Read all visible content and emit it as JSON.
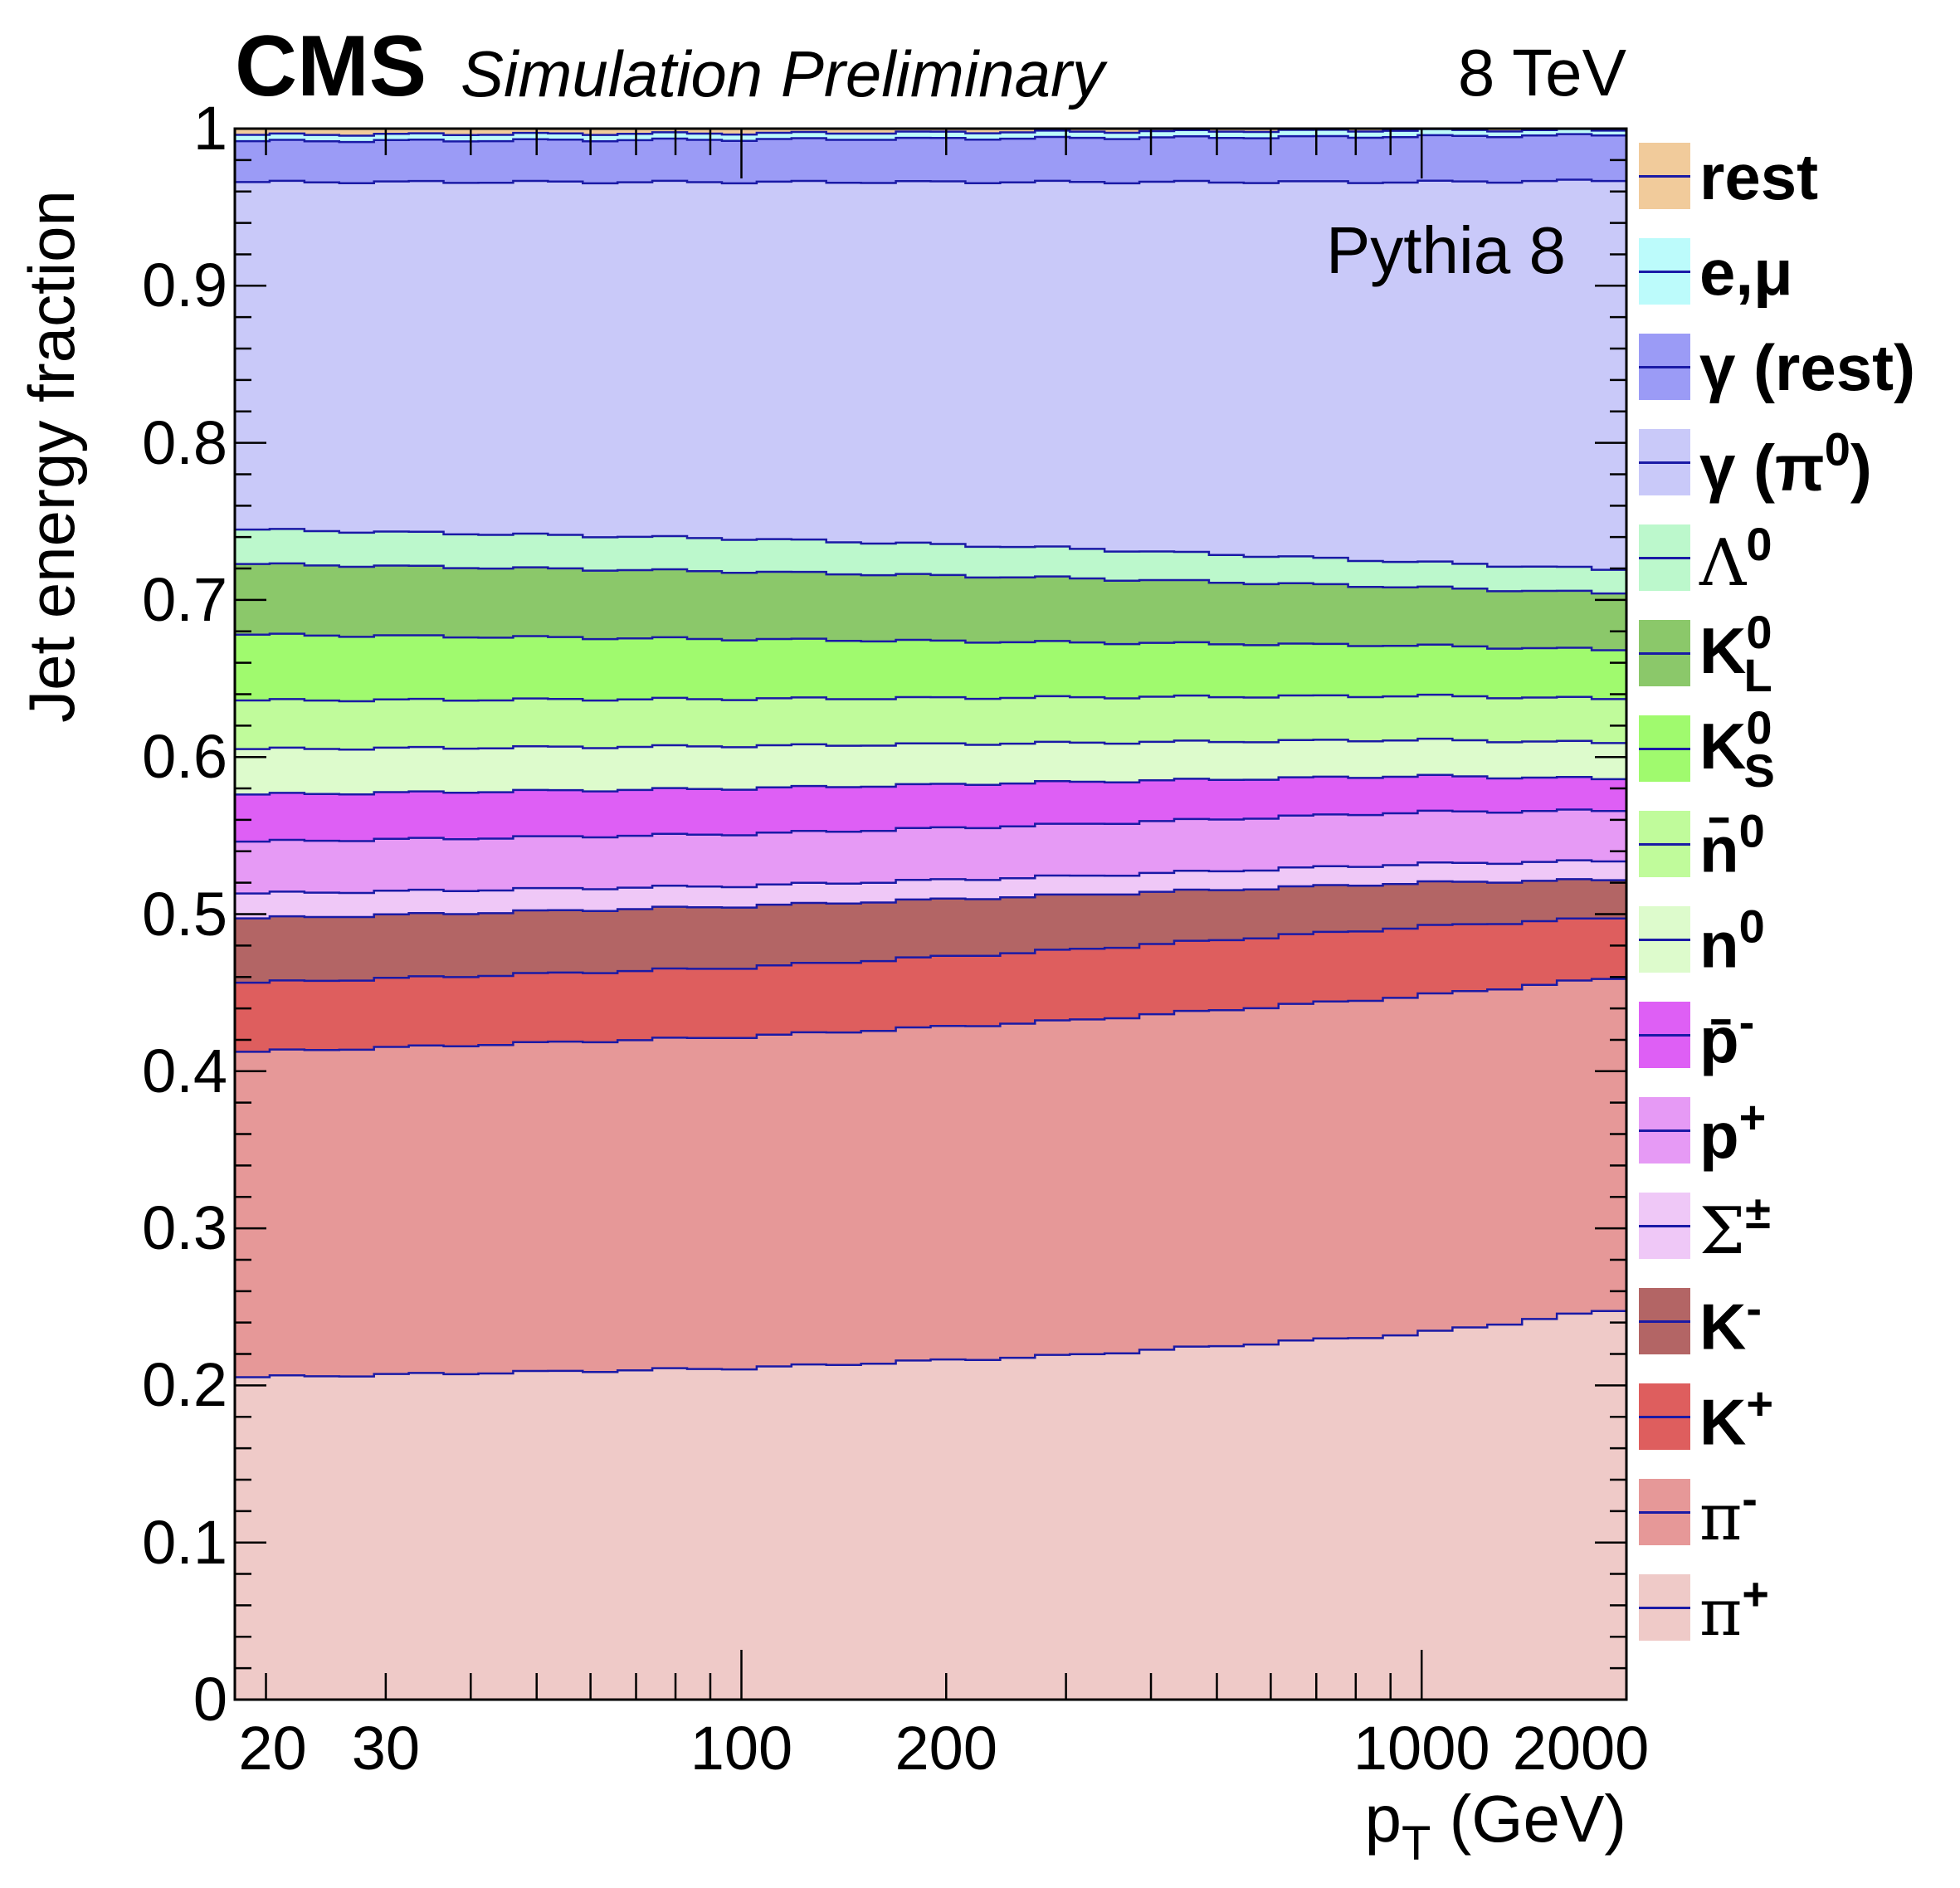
{
  "header": {
    "experiment": "CMS",
    "status": "Simulation Preliminary",
    "energy": "8 TeV",
    "generator": "Pythia 8"
  },
  "chart_data": {
    "type": "area",
    "stacked": true,
    "title": "CMS Simulation Preliminary 8 TeV",
    "xlabel": "p_T (GeV)",
    "ylabel": "Jet energy fraction",
    "xscale": "log",
    "xlim": [
      18,
      2000
    ],
    "ylim": [
      0,
      1.0
    ],
    "x_tick_labels": [
      "20",
      "30",
      "100",
      "200",
      "1000",
      "2000"
    ],
    "x_ticks": [
      20,
      30,
      100,
      200,
      1000,
      2000
    ],
    "y_tick_labels": [
      "0",
      "0.1",
      "0.2",
      "0.3",
      "0.4",
      "0.5",
      "0.6",
      "0.7",
      "0.8",
      "0.9",
      "1"
    ],
    "y_ticks": [
      0,
      0.1,
      0.2,
      0.3,
      0.4,
      0.5,
      0.6,
      0.7,
      0.8,
      0.9,
      1.0
    ],
    "x": [
      18,
      100,
      300,
      1000,
      2000
    ],
    "series_stack_order": "bottom-to-top",
    "cumulative_upper_edges": [
      {
        "name": "π+",
        "color": "#efcac8",
        "values": [
          0.205,
          0.211,
          0.219,
          0.233,
          0.249
        ]
      },
      {
        "name": "π-",
        "color": "#e69898",
        "values": [
          0.412,
          0.422,
          0.432,
          0.448,
          0.46
        ]
      },
      {
        "name": "K+",
        "color": "#de5e5e",
        "values": [
          0.456,
          0.466,
          0.477,
          0.492,
          0.498
        ]
      },
      {
        "name": "K-",
        "color": "#b36565",
        "values": [
          0.497,
          0.505,
          0.512,
          0.52,
          0.522
        ]
      },
      {
        "name": "Σ±",
        "color": "#efc8f7",
        "values": [
          0.513,
          0.518,
          0.524,
          0.532,
          0.534
        ]
      },
      {
        "name": "p+",
        "color": "#e69af5",
        "values": [
          0.546,
          0.551,
          0.557,
          0.565,
          0.566
        ]
      },
      {
        "name": "p̄-",
        "color": "#de5ff5",
        "values": [
          0.576,
          0.58,
          0.584,
          0.588,
          0.586
        ]
      },
      {
        "name": "n0",
        "color": "#ddfbcc",
        "values": [
          0.605,
          0.607,
          0.609,
          0.611,
          0.609
        ]
      },
      {
        "name": "n̄0",
        "color": "#c0fb9b",
        "values": [
          0.636,
          0.637,
          0.638,
          0.639,
          0.637
        ]
      },
      {
        "name": "KS0",
        "color": "#a0fa6e",
        "values": [
          0.678,
          0.675,
          0.673,
          0.671,
          0.668
        ]
      },
      {
        "name": "KL0",
        "color": "#8bc86a",
        "values": [
          0.723,
          0.718,
          0.714,
          0.708,
          0.704
        ]
      },
      {
        "name": "Λ0",
        "color": "#bcf8cc",
        "values": [
          0.745,
          0.739,
          0.733,
          0.724,
          0.719
        ]
      },
      {
        "name": "γ (π0)",
        "color": "#c9c9f9",
        "values": [
          0.966,
          0.966,
          0.966,
          0.966,
          0.967
        ]
      },
      {
        "name": "γ (rest)",
        "color": "#9b9bf6",
        "values": [
          0.992,
          0.993,
          0.994,
          0.995,
          0.996
        ]
      },
      {
        "name": "e,μ",
        "color": "#bcfbfb",
        "values": [
          0.996,
          0.997,
          0.998,
          0.999,
          0.999
        ]
      },
      {
        "name": "rest",
        "color": "#f1cb9b",
        "values": [
          1.0,
          1.0,
          1.0,
          1.0,
          1.0
        ]
      }
    ],
    "legend": {
      "placement": "right",
      "entries": [
        "rest",
        "e,μ",
        "γ (rest)",
        "γ (π0)",
        "Λ0",
        "K0L",
        "K0S",
        "n̄0",
        "n0",
        "p̄-",
        "p+",
        "Σ±",
        "K-",
        "K+",
        "π-",
        "π+"
      ]
    },
    "line_color": "#1a1aa6",
    "annotation": "Pythia 8"
  },
  "legend_labels": [
    {
      "id": "rest",
      "base": "rest",
      "sup": "",
      "sub": "",
      "greek": false
    },
    {
      "id": "emu",
      "base": "e,μ",
      "sup": "",
      "sub": "",
      "greek": false
    },
    {
      "id": "gamrest",
      "base": "γ  (rest)",
      "sup": "",
      "sub": "",
      "greek": false
    },
    {
      "id": "gampi0",
      "base": "γ  (π",
      "sup": "0",
      "sub": "",
      "tail": ")",
      "greek": false
    },
    {
      "id": "lambda0",
      "base": "Λ",
      "sup": "0",
      "sub": "",
      "greek": true
    },
    {
      "id": "kl0",
      "base": "K",
      "sup": "0",
      "sub": "L",
      "greek": false
    },
    {
      "id": "ks0",
      "base": "K",
      "sup": "0",
      "sub": "S",
      "greek": false
    },
    {
      "id": "nbar0",
      "base": "n̄",
      "sup": "0",
      "sub": "",
      "greek": false
    },
    {
      "id": "n0",
      "base": "n",
      "sup": "0",
      "sub": "",
      "greek": false
    },
    {
      "id": "pbarm",
      "base": "p̄",
      "sup": "-",
      "sub": "",
      "greek": false
    },
    {
      "id": "pp",
      "base": "p",
      "sup": "+",
      "sub": "",
      "greek": false
    },
    {
      "id": "sigma",
      "base": "Σ",
      "sup": "±",
      "sub": "",
      "greek": true
    },
    {
      "id": "km",
      "base": "K",
      "sup": "-",
      "sub": "",
      "greek": false
    },
    {
      "id": "kp",
      "base": "K",
      "sup": "+",
      "sub": "",
      "greek": false
    },
    {
      "id": "pim",
      "base": "π",
      "sup": "-",
      "sub": "",
      "greek": true
    },
    {
      "id": "pip",
      "base": "π",
      "sup": "+",
      "sub": "",
      "greek": true
    }
  ],
  "legend_colors": [
    "#f1cb9b",
    "#bcfbfb",
    "#9b9bf6",
    "#c9c9f9",
    "#bcf8cc",
    "#8bc86a",
    "#a0fa6e",
    "#c0fb9b",
    "#ddfbcc",
    "#de5ff5",
    "#e69af5",
    "#efc8f7",
    "#b36565",
    "#de5e5e",
    "#e69898",
    "#efcac8"
  ],
  "axis_labels": {
    "y": "Jet energy fraction",
    "x_main": "p",
    "x_sub": "T",
    "x_unit": " (GeV)"
  }
}
